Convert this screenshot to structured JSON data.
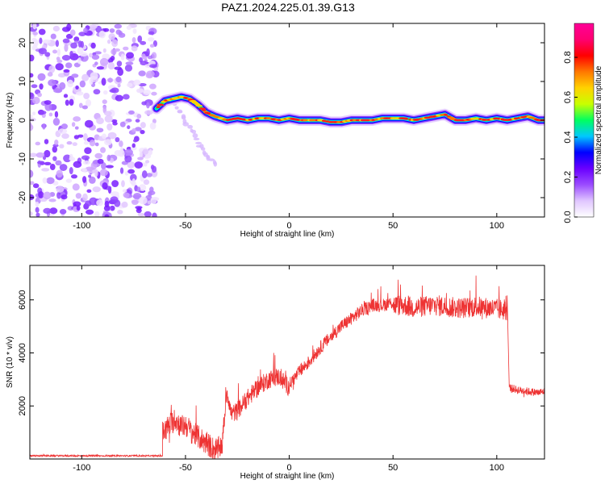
{
  "title": "PAZ1.2024.225.01.39.G13",
  "chart_data": [
    {
      "type": "heatmap",
      "xlabel": "Height of straight line (km)",
      "ylabel": "Frequency (Hz)",
      "xlim": [
        -125,
        123
      ],
      "ylim": [
        -25,
        25
      ],
      "xticks": [
        -100,
        -50,
        0,
        50,
        100
      ],
      "yticks": [
        -20,
        -10,
        0,
        10,
        20
      ],
      "grid": false,
      "colorbar": {
        "label": "Normalized spectral amplitude",
        "ticks": [
          "0.0",
          "0.2",
          "0.4",
          "0.6",
          "0.8"
        ],
        "range": [
          0,
          0.97
        ],
        "colors": [
          "#ffffff",
          "#e0c6ff",
          "#9b4cff",
          "#6a00ff",
          "#0000ff",
          "#00c8ff",
          "#00ff60",
          "#c8ff00",
          "#ffd200",
          "#ff7800",
          "#ff0000",
          "#ff0070",
          "#ff0098"
        ]
      },
      "ridge": {
        "x": [
          -64,
          -60,
          -56,
          -52,
          -48,
          -44,
          -40,
          -36,
          -30,
          -25,
          -20,
          -15,
          -10,
          -5,
          0,
          5,
          10,
          15,
          20,
          25,
          30,
          35,
          40,
          45,
          50,
          55,
          60,
          65,
          70,
          75,
          80,
          85,
          90,
          95,
          100,
          105,
          110,
          115,
          120,
          123
        ],
        "y": [
          3,
          5,
          5.5,
          6,
          5.5,
          4,
          2,
          1,
          0,
          0.5,
          0,
          0.5,
          0.5,
          0,
          0.5,
          0,
          0,
          0,
          -0.5,
          -0.5,
          0,
          0,
          0,
          0.5,
          0.5,
          0.5,
          0,
          0.5,
          1,
          1.5,
          0,
          0,
          0.5,
          0,
          0.5,
          0,
          0.5,
          1,
          0,
          0
        ]
      },
      "noise_region_x": [
        -125,
        -64
      ],
      "streak": {
        "x": [
          -55,
          -50,
          -45,
          -40,
          -35
        ],
        "y": [
          4,
          0,
          -5,
          -9,
          -12
        ]
      }
    },
    {
      "type": "line",
      "xlabel": "Height of straight line (km)",
      "ylabel": "SNR (10 * v/v)",
      "xlim": [
        -125,
        123
      ],
      "ylim": [
        0,
        7300
      ],
      "xticks": [
        -100,
        -50,
        0,
        50,
        100
      ],
      "yticks": [
        2000,
        4000,
        6000
      ],
      "grid": false,
      "color": "#ee3333",
      "segments": [
        {
          "x": [
            -125,
            -61
          ],
          "y": [
            120,
            120
          ],
          "noise": 30
        },
        {
          "x": [
            -61,
            -55,
            -52,
            -50,
            -48,
            -45,
            -40,
            -35,
            -32
          ],
          "y": [
            1000,
            1500,
            1200,
            1300,
            1100,
            900,
            600,
            300,
            600
          ],
          "noise": 450
        },
        {
          "x": [
            -32,
            -30,
            -28,
            -25,
            -20,
            -15,
            -10,
            -5,
            0
          ],
          "y": [
            900,
            2600,
            1700,
            1800,
            2300,
            2700,
            3000,
            3100,
            2700
          ],
          "noise": 350
        },
        {
          "x": [
            0,
            5,
            10,
            15,
            20,
            25,
            30,
            35,
            40,
            45,
            50
          ],
          "y": [
            2800,
            3300,
            3700,
            4200,
            4600,
            5000,
            5300,
            5600,
            5800,
            5800,
            5900
          ],
          "noise": 250
        },
        {
          "x": [
            50,
            55,
            60,
            65,
            70,
            75,
            80,
            85,
            90,
            95,
            100,
            105
          ],
          "y": [
            5800,
            5800,
            5700,
            5750,
            5800,
            5750,
            5700,
            5700,
            5750,
            5700,
            5650,
            5600
          ],
          "noise": 400
        },
        {
          "x": [
            106,
            110,
            115,
            120,
            123
          ],
          "y": [
            2700,
            2600,
            2550,
            2500,
            2550
          ],
          "noise": 150
        }
      ]
    }
  ]
}
